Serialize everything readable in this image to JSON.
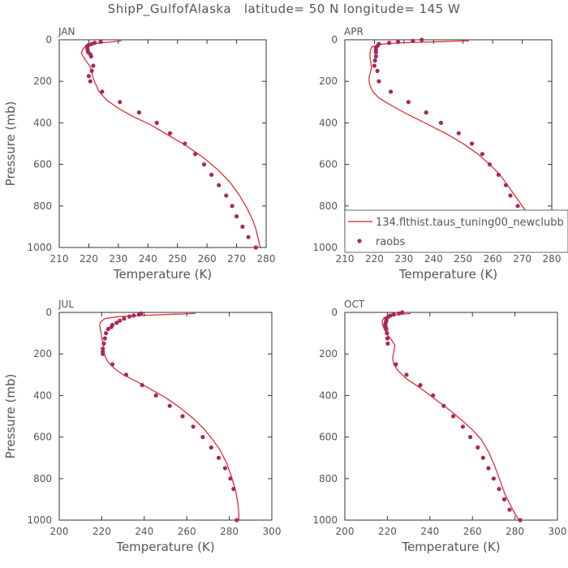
{
  "figure": {
    "title": "ShipP_GulfofAlaska   latitude= 50 N longitude= 145 W"
  },
  "chart_data": [
    {
      "type": "line",
      "panel_label": "JAN",
      "xlabel": "Temperature (K)",
      "ylabel": "Pressure (mb)",
      "xlim": [
        210,
        280
      ],
      "ylim": [
        1000,
        0
      ],
      "xticks": [
        210,
        220,
        230,
        240,
        250,
        260,
        270,
        280
      ],
      "yticks": [
        0,
        200,
        400,
        600,
        800,
        1000
      ],
      "colors": {
        "model": "#dd2222",
        "obs": "#a8285a"
      },
      "series": [
        {
          "kind": "line",
          "x": [
            231,
            228,
            224,
            221.5,
            219,
            218,
            217.5,
            218.5,
            219.5,
            220.5,
            221,
            221.2,
            221.6,
            222.2,
            223.5,
            226,
            230,
            235,
            241,
            247,
            253,
            259,
            264,
            268,
            271,
            273.5,
            275.5,
            276.5,
            277,
            277.5,
            278
          ],
          "y": [
            5,
            10,
            15,
            20,
            30,
            45,
            65,
            90,
            110,
            130,
            150,
            170,
            190,
            210,
            250,
            290,
            330,
            370,
            410,
            460,
            510,
            570,
            630,
            690,
            750,
            810,
            870,
            910,
            940,
            970,
            1000
          ]
        },
        {
          "kind": "scatter",
          "x": [
            224,
            222,
            221,
            220,
            219.5,
            219.5,
            219.6,
            219.8,
            220.5,
            220.8,
            221.5,
            221,
            220,
            220.5,
            224.5,
            230.5,
            237,
            243,
            247.5,
            252.5,
            256,
            259,
            261.5,
            264,
            266.5,
            268.5,
            270,
            272,
            274,
            276.5
          ],
          "y": [
            10,
            15,
            20,
            25,
            30,
            40,
            50,
            60,
            70,
            80,
            125,
            150,
            175,
            200,
            250,
            300,
            350,
            400,
            450,
            500,
            550,
            600,
            650,
            700,
            750,
            800,
            850,
            900,
            950,
            1000
          ]
        }
      ]
    },
    {
      "type": "line",
      "panel_label": "APR",
      "xlabel": "Temperature (K)",
      "xlim": [
        210,
        280
      ],
      "ylim": [
        1000,
        0
      ],
      "xticks": [
        210,
        220,
        230,
        240,
        250,
        260,
        270,
        280
      ],
      "yticks": [
        0,
        200,
        400,
        600,
        800,
        1000
      ],
      "colors": {
        "model": "#dd2222",
        "obs": "#a8285a"
      },
      "legend": {
        "placement": "bottom-right",
        "entries": [
          {
            "label": "134.flthist.taus_tuning00_newclubb",
            "kind": "line"
          },
          {
            "label": "raobs",
            "kind": "scatter"
          }
        ]
      },
      "series": [
        {
          "kind": "line",
          "x": [
            252,
            240,
            228,
            222,
            219,
            218.5,
            218.5,
            218.8,
            219,
            218.6,
            218.2,
            218.2,
            218.5,
            219.5,
            221.5,
            225,
            230,
            237,
            244,
            250,
            255,
            259,
            262.5,
            265,
            267.5,
            270,
            272.5,
            274.5,
            276.5,
            278
          ],
          "y": [
            5,
            10,
            15,
            22,
            35,
            60,
            85,
            110,
            135,
            160,
            180,
            200,
            220,
            250,
            280,
            310,
            350,
            400,
            450,
            500,
            550,
            600,
            650,
            700,
            750,
            800,
            850,
            900,
            950,
            1000
          ]
        },
        {
          "kind": "scatter",
          "x": [
            236,
            233,
            228,
            225,
            221.5,
            221,
            220.5,
            220.5,
            220.5,
            220.5,
            220.2,
            220,
            221,
            221.5,
            225.5,
            231.5,
            237.5,
            242.5,
            248.5,
            253,
            256.5,
            259,
            262,
            264.5,
            266,
            268.5,
            270.5,
            272,
            274.5,
            277.5
          ],
          "y": [
            0,
            5,
            10,
            15,
            20,
            30,
            40,
            50,
            60,
            80,
            100,
            125,
            150,
            200,
            250,
            300,
            350,
            400,
            450,
            500,
            550,
            600,
            650,
            700,
            750,
            800,
            850,
            900,
            950,
            1000
          ]
        }
      ]
    },
    {
      "type": "line",
      "panel_label": "JUL",
      "xlabel": "Temperature (K)",
      "ylabel": "Pressure (mb)",
      "xlim": [
        200,
        300
      ],
      "ylim": [
        1000,
        0
      ],
      "xticks": [
        200,
        220,
        240,
        260,
        280,
        300
      ],
      "yticks": [
        0,
        200,
        400,
        600,
        800,
        1000
      ],
      "colors": {
        "model": "#dd2222",
        "obs": "#a8285a"
      },
      "series": [
        {
          "kind": "line",
          "x": [
            264,
            250,
            238,
            228,
            221.5,
            219.5,
            219,
            219.5,
            220,
            220.5,
            221,
            221,
            221.5,
            223,
            226,
            230,
            236,
            243,
            250,
            257,
            263,
            268,
            272,
            275.5,
            278.5,
            281,
            283,
            284,
            284.5,
            284.5
          ],
          "y": [
            5,
            10,
            15,
            20,
            30,
            45,
            65,
            90,
            120,
            150,
            170,
            190,
            210,
            240,
            270,
            300,
            330,
            370,
            410,
            460,
            510,
            560,
            610,
            660,
            720,
            790,
            860,
            920,
            970,
            1000
          ]
        },
        {
          "kind": "scatter",
          "x": [
            238.5,
            237.5,
            235,
            233,
            230.5,
            228.5,
            227,
            225,
            224.5,
            223,
            222,
            221.5,
            221,
            220.5,
            220.5,
            220.5,
            225,
            231.5,
            239,
            245.5,
            252,
            258,
            263,
            267.5,
            271.5,
            275,
            278,
            280.5,
            282,
            283.5
          ],
          "y": [
            5,
            10,
            15,
            20,
            30,
            40,
            50,
            60,
            70,
            80,
            100,
            125,
            150,
            175,
            190,
            200,
            250,
            300,
            350,
            400,
            450,
            500,
            550,
            600,
            650,
            700,
            750,
            800,
            850,
            1000
          ]
        }
      ]
    },
    {
      "type": "line",
      "panel_label": "OCT",
      "xlabel": "Temperature (K)",
      "xlim": [
        200,
        300
      ],
      "ylim": [
        1000,
        0
      ],
      "xticks": [
        200,
        220,
        240,
        260,
        280,
        300
      ],
      "yticks": [
        0,
        200,
        400,
        600,
        800,
        1000
      ],
      "colors": {
        "model": "#dd2222",
        "obs": "#a8285a"
      },
      "series": [
        {
          "kind": "line",
          "x": [
            231,
            225,
            221,
            218.5,
            217.5,
            217.8,
            218.5,
            219.5,
            221,
            222.5,
            223.5,
            223,
            222.5,
            223,
            225,
            229,
            235,
            241.5,
            248,
            254,
            259.5,
            264,
            267.5,
            270.5,
            273,
            275.5,
            278,
            280,
            282
          ],
          "y": [
            5,
            10,
            15,
            25,
            40,
            60,
            80,
            100,
            120,
            140,
            160,
            190,
            220,
            250,
            280,
            320,
            360,
            410,
            460,
            510,
            560,
            610,
            670,
            740,
            810,
            880,
            930,
            970,
            1000
          ]
        },
        {
          "kind": "scatter",
          "x": [
            227,
            225.5,
            223,
            221.5,
            220.5,
            219.5,
            219.5,
            219.2,
            219,
            219.2,
            219.5,
            219.8,
            220,
            220.2,
            224,
            229,
            235.5,
            241.5,
            246.5,
            251,
            255.5,
            259,
            262.5,
            265,
            267.5,
            270,
            272.5,
            275,
            277.5,
            282.5
          ],
          "y": [
            0,
            5,
            10,
            15,
            20,
            30,
            40,
            50,
            60,
            70,
            80,
            100,
            125,
            150,
            250,
            300,
            350,
            400,
            450,
            500,
            550,
            600,
            650,
            700,
            750,
            800,
            850,
            900,
            950,
            1000
          ]
        }
      ]
    }
  ]
}
